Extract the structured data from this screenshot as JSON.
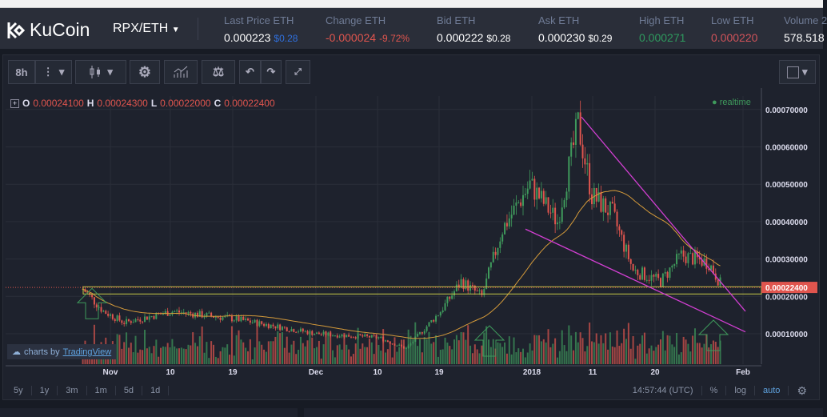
{
  "header": {
    "brand": "KuCoin",
    "pair": "RPX/ETH",
    "stats": [
      {
        "label": "Last Price ETH",
        "value": "0.000223",
        "usd": "$0.28",
        "color": "#ffffff",
        "usd_color": "#2f6fdc"
      },
      {
        "label": "Change ETH",
        "value": "-0.000024",
        "usd": "-9.72%",
        "color": "#e0554e",
        "usd_color": "#e0554e"
      },
      {
        "label": "Bid ETH",
        "value": "0.000222",
        "usd": "$0.28",
        "color": "#ffffff",
        "usd_color": "#ffffff"
      },
      {
        "label": "Ask ETH",
        "value": "0.000230",
        "usd": "$0.29",
        "color": "#ffffff",
        "usd_color": "#ffffff"
      },
      {
        "label": "High ETH",
        "value": "0.000271",
        "usd": "",
        "color": "#2e9a5e",
        "usd_color": ""
      },
      {
        "label": "Low ETH",
        "value": "0.000220",
        "usd": "",
        "color": "#d1535a",
        "usd_color": ""
      },
      {
        "label": "Volume 2",
        "value": "578.518",
        "usd": "",
        "color": "#ffffff",
        "usd_color": ""
      }
    ]
  },
  "toolbar": {
    "interval": "8h"
  },
  "legend": {
    "o_label": "O",
    "o": "0.00024100",
    "h_label": "H",
    "h": "0.00024300",
    "l_label": "L",
    "l": "0.00022000",
    "c_label": "C",
    "c": "0.00022400",
    "realtime": "realtime"
  },
  "branding": {
    "prefix": "charts by",
    "link": "TradingView"
  },
  "bottom": {
    "ranges": [
      "5y",
      "1y",
      "3m",
      "1m",
      "5d",
      "1d"
    ],
    "time": "14:57:44 (UTC)",
    "percent": "%",
    "log": "log",
    "auto": "auto"
  },
  "chart_data": {
    "type": "candlestick",
    "interval": "8h",
    "x_ticks": [
      "Nov",
      "10",
      "19",
      "Dec",
      "10",
      "19",
      "2018",
      "11",
      "20",
      "Feb"
    ],
    "y_ticks": [
      "0.00070000",
      "0.00060000",
      "0.00050000",
      "0.00040000",
      "0.00030000",
      "0.00020000",
      "0.00010000"
    ],
    "ylim": [
      1e-05,
      0.00072
    ],
    "last_price": "0.00022400",
    "close_keypoints": [
      {
        "date": "2017-10-28",
        "close": 0.00022
      },
      {
        "date": "2017-10-31",
        "close": 0.00016
      },
      {
        "date": "2017-11-03",
        "close": 0.00013
      },
      {
        "date": "2017-11-10",
        "close": 0.00016
      },
      {
        "date": "2017-11-19",
        "close": 0.00014
      },
      {
        "date": "2017-12-01",
        "close": 0.0001
      },
      {
        "date": "2017-12-10",
        "close": 9e-05
      },
      {
        "date": "2017-12-14",
        "close": 6e-05
      },
      {
        "date": "2017-12-19",
        "close": 0.00016
      },
      {
        "date": "2017-12-22",
        "close": 0.00024
      },
      {
        "date": "2017-12-25",
        "close": 0.0002
      },
      {
        "date": "2017-12-28",
        "close": 0.00038
      },
      {
        "date": "2018-01-01",
        "close": 0.0005
      },
      {
        "date": "2018-01-05",
        "close": 0.0004
      },
      {
        "date": "2018-01-08",
        "close": 0.00066
      },
      {
        "date": "2018-01-10",
        "close": 0.00047
      },
      {
        "date": "2018-01-13",
        "close": 0.00042
      },
      {
        "date": "2018-01-16",
        "close": 0.00027
      },
      {
        "date": "2018-01-20",
        "close": 0.00024
      },
      {
        "date": "2018-01-23",
        "close": 0.00031
      },
      {
        "date": "2018-01-27",
        "close": 0.00029
      },
      {
        "date": "2018-01-29",
        "close": 0.000224
      }
    ],
    "colors": {
      "up": "#3f9a5c",
      "down": "#e0554e",
      "trendline": "#d13fd1",
      "support": "#c8c848",
      "arrows": "#3f9a5c"
    }
  }
}
